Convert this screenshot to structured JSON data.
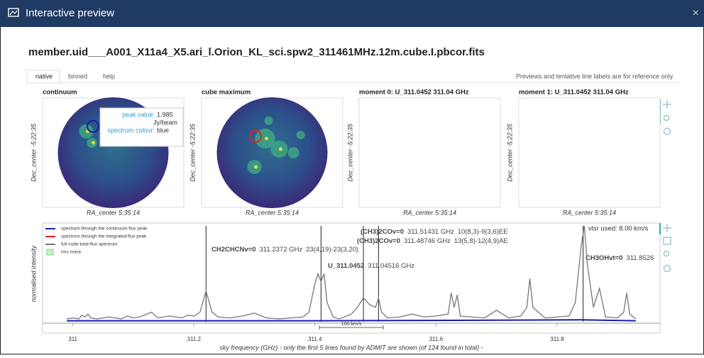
{
  "dialog": {
    "title": "Interactive preview",
    "close": "×"
  },
  "filename": "member.uid___A001_X11a4_X5.ari_l.Orion_KL_sci.spw2_311461MHz.12m.cube.I.pbcor.fits",
  "tabs": [
    "native",
    "binned",
    "help"
  ],
  "note": "Previews and tentative line labels are for reference only.",
  "images": [
    {
      "title": "continuum",
      "ylabel": "Dec_center -5:22:35",
      "xlabel": "RA_center 5:35:14"
    },
    {
      "title": "cube maximum",
      "ylabel": "Dec_center -5:22:35",
      "xlabel": "RA_center 5:35:14"
    },
    {
      "title": "moment 0: U_311.0452 311.04 GHz",
      "ylabel": "Dec_center -5:22:35",
      "xlabel": "RA_center 5:35:14"
    },
    {
      "title": "moment 1: U_311.0452 311.04 GHz",
      "ylabel": "Dec_center -5:22:35",
      "xlabel": "RA_center 5:35:14"
    }
  ],
  "tooltip": {
    "peak_label": "peak value:",
    "peak_value": "1.985",
    "unit": "Jy/beam",
    "colour_label": "spectrum colour:",
    "colour": "blue"
  },
  "spectrum": {
    "ylabel": "normalised intensity",
    "xlabel": "sky frequency (GHz) - only the first 5 lines found by ADMIT are shown (of 124 found in total) -",
    "xlim": [
      310.95,
      311.97
    ],
    "ylim": [
      0,
      1
    ],
    "xticks": [
      311,
      311.2,
      311.4,
      311.6,
      311.8
    ],
    "vlsr": "vlsr used: 8.00 km/s",
    "scale_bar": "100 km/s",
    "legend": [
      {
        "label": "spectrum through the continuum-flux peak",
        "color": "#1a1aa8"
      },
      {
        "label": "spectrum through the integrated-flux peak",
        "color": "#e02020"
      },
      {
        "label": "full-cube total-flux spectrum",
        "color": "#777777"
      },
      {
        "label": "rms noise",
        "color": "#c8f0c8"
      }
    ],
    "curves": [
      {
        "color": "#777777",
        "x": [
          310.99,
          311.0,
          311.01,
          311.015,
          311.02,
          311.025,
          311.03,
          311.04,
          311.06,
          311.08,
          311.09,
          311.1,
          311.11,
          311.13,
          311.14,
          311.16,
          311.18,
          311.19,
          311.2,
          311.21,
          311.22,
          311.23,
          311.24,
          311.26,
          311.28,
          311.3,
          311.32,
          311.34,
          311.36,
          311.38,
          311.39,
          311.4,
          311.405,
          311.41,
          311.415,
          311.42,
          311.43,
          311.44,
          311.46,
          311.47,
          311.48,
          311.49,
          311.5,
          311.505,
          311.51,
          311.52,
          311.54,
          311.56,
          311.58,
          311.6,
          311.62,
          311.625,
          311.63,
          311.635,
          311.64,
          311.66,
          311.68,
          311.7,
          311.72,
          311.74,
          311.75,
          311.755,
          311.76,
          311.78,
          311.8,
          311.82,
          311.83,
          311.84,
          311.845,
          311.85,
          311.86,
          311.87,
          311.875,
          311.88,
          311.9,
          311.91,
          311.915,
          311.92,
          311.93
        ],
        "values": [
          0.03,
          0.04,
          0.03,
          0.07,
          0.05,
          0.08,
          0.04,
          0.03,
          0.05,
          0.03,
          0.06,
          0.04,
          0.05,
          0.1,
          0.04,
          0.06,
          0.04,
          0.07,
          0.06,
          0.1,
          0.32,
          0.1,
          0.05,
          0.04,
          0.06,
          0.09,
          0.04,
          0.03,
          0.04,
          0.05,
          0.1,
          0.4,
          0.5,
          0.42,
          0.5,
          0.2,
          0.05,
          0.03,
          0.08,
          0.15,
          0.25,
          0.18,
          0.15,
          0.25,
          0.1,
          0.04,
          0.05,
          0.08,
          0.05,
          0.06,
          0.08,
          0.3,
          0.15,
          0.28,
          0.06,
          0.05,
          0.04,
          0.12,
          0.04,
          0.06,
          0.15,
          0.45,
          0.15,
          0.04,
          0.05,
          0.06,
          0.2,
          0.8,
          1.0,
          0.6,
          0.15,
          0.35,
          0.2,
          0.05,
          0.04,
          0.1,
          0.3,
          0.08,
          0.03
        ]
      },
      {
        "color": "#1a1aa8",
        "x": [
          310.99,
          311.4,
          311.84,
          311.93
        ],
        "values": [
          0.01,
          0.01,
          0.02,
          0.01
        ]
      }
    ],
    "lines": [
      {
        "name": "CH2CHCNv=0",
        "freq": "311.2372 GHz",
        "transition": "23(4,19)-23(3,20)",
        "x": 311.22
      },
      {
        "name": "U_311.0452",
        "freq": "311.04516 GHz",
        "x": 311.41
      },
      {
        "name": "(CH3)2COv=0",
        "freq": "311.48746 GHz",
        "transition": "13(5,8)-12(4,9)AE",
        "x": 311.48
      },
      {
        "name": "(CH3)2COv=0",
        "freq": "311.51431 GHz",
        "transition": "10(8,3)-9(3,6)EE",
        "x": 311.505
      },
      {
        "name": "CH3OHvt=0",
        "freq": "311.8526",
        "x": 311.843
      }
    ]
  }
}
